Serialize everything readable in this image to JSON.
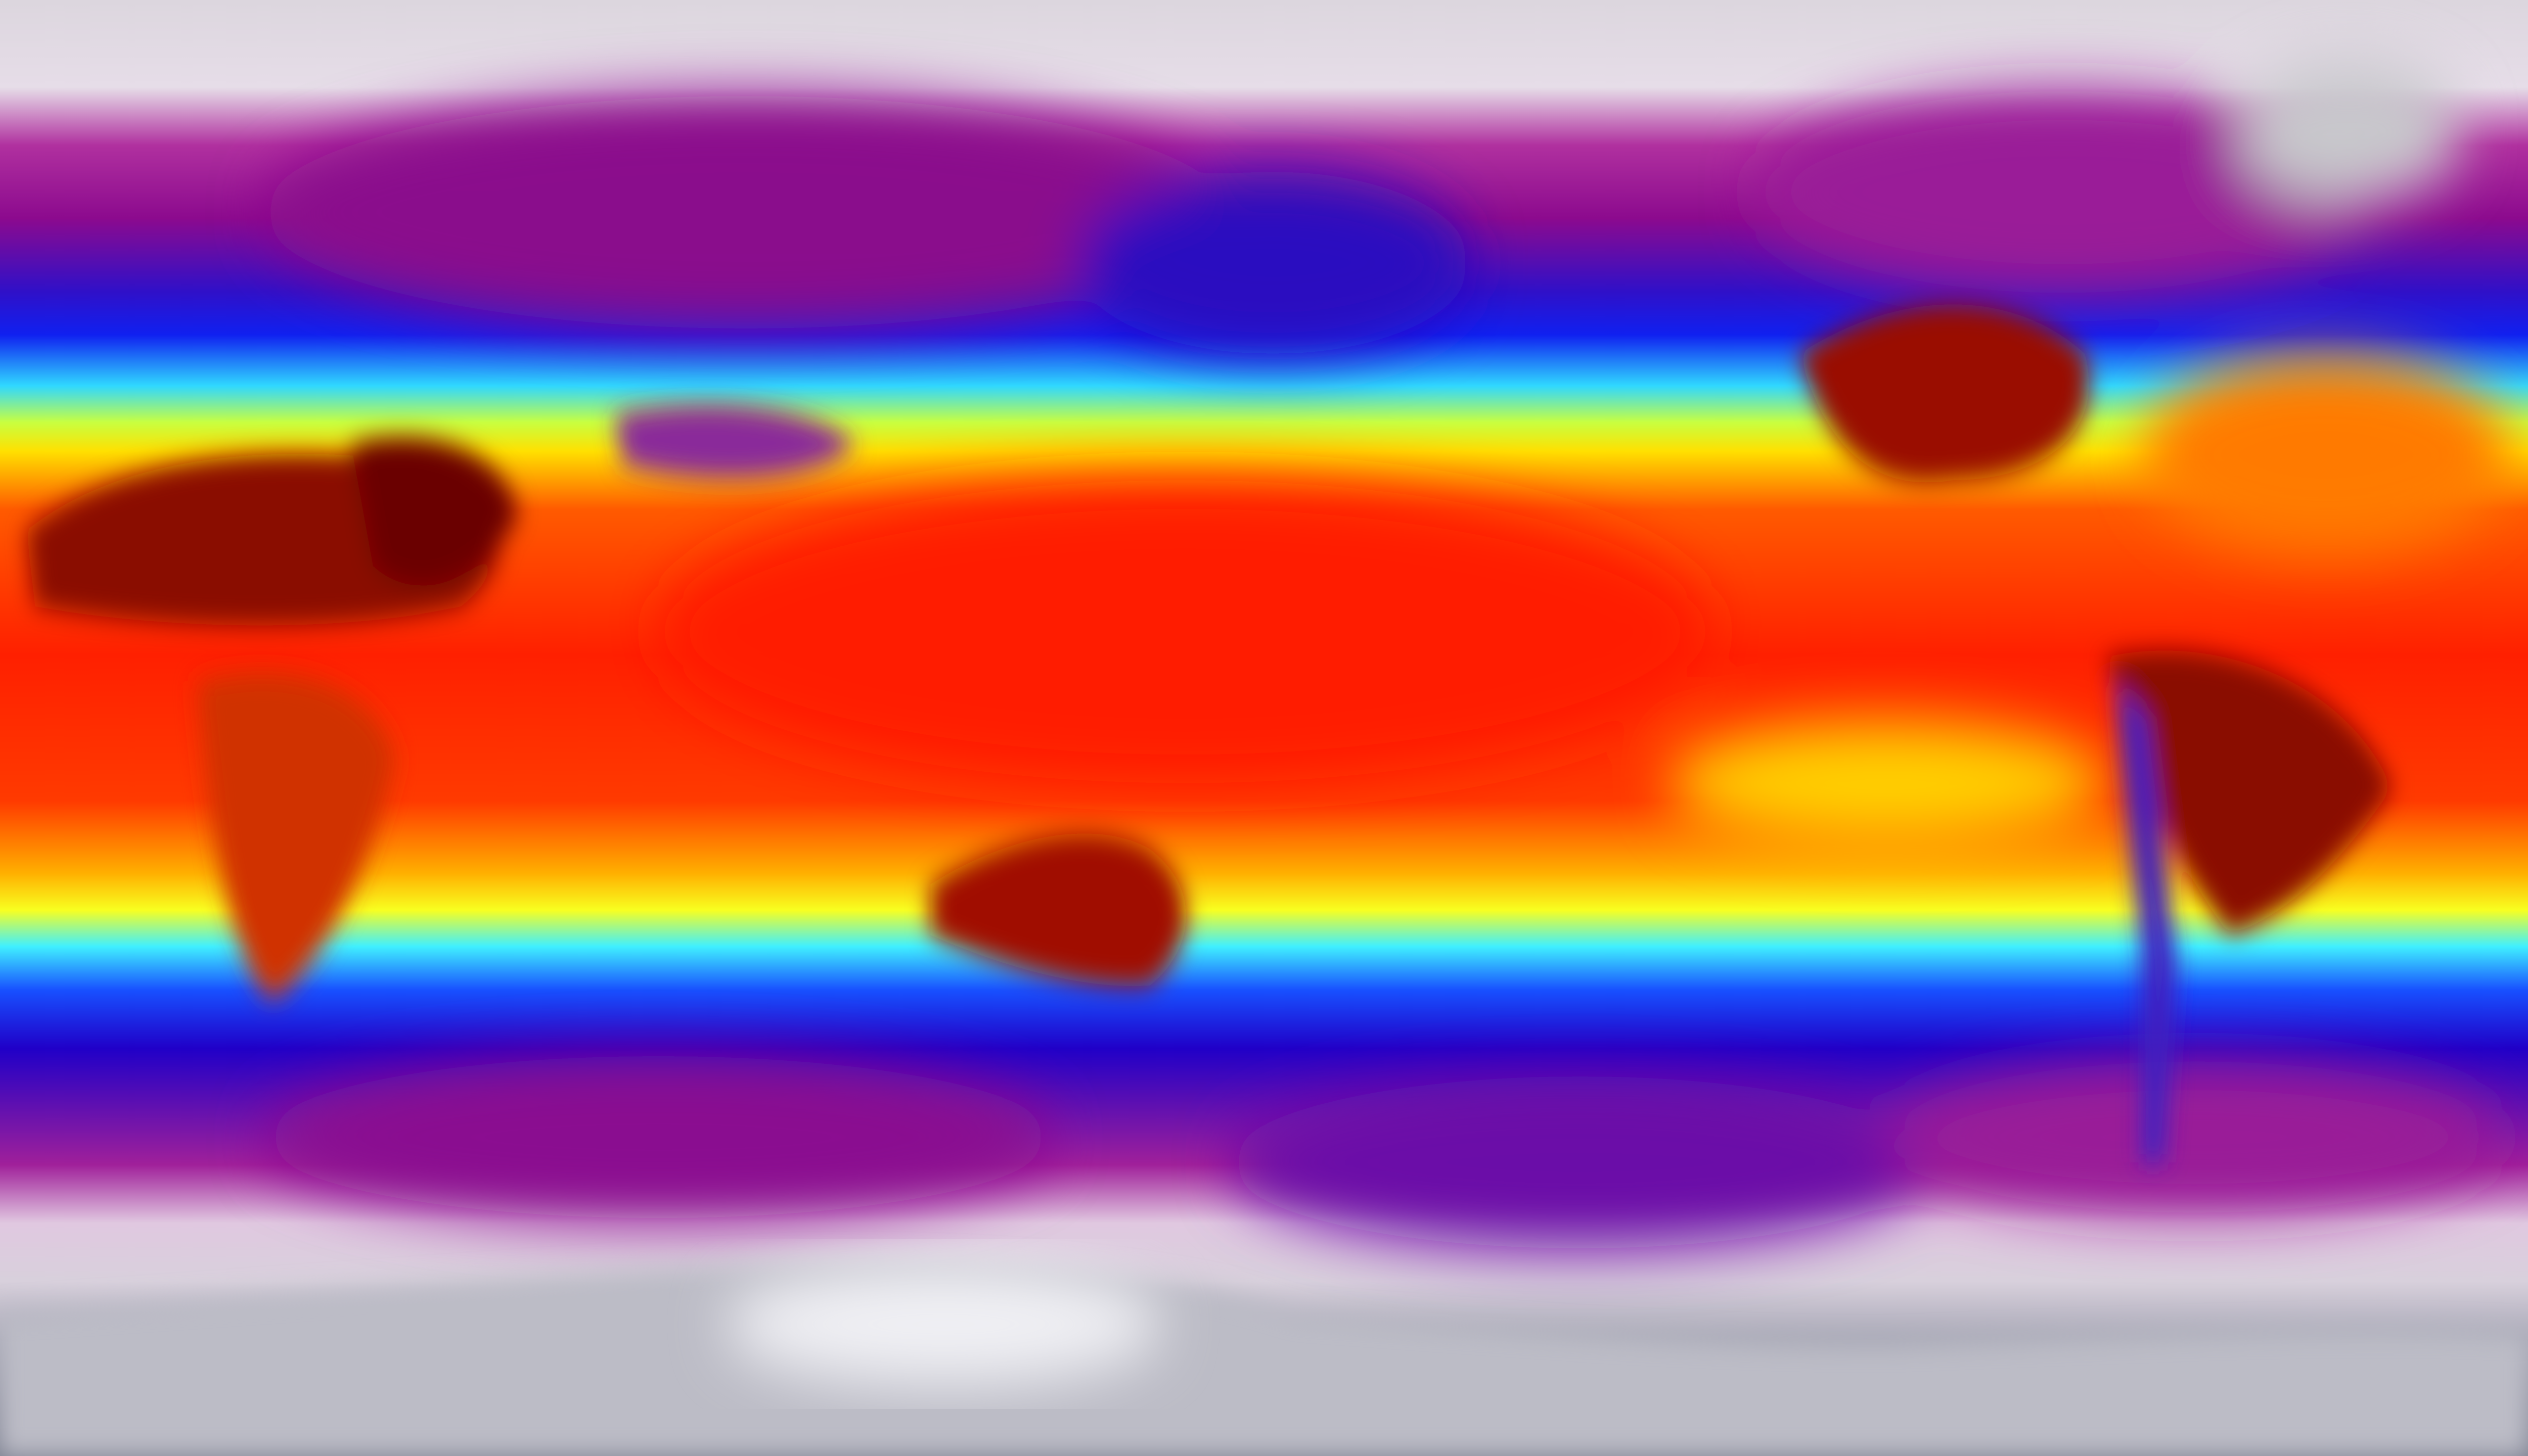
{
  "map": {
    "projection": "equirectangular",
    "colormap": {
      "ice": "#8a8d9c",
      "polar": "#e8dde8",
      "cold": "#9a0a9a",
      "cool": "#1a00e0",
      "mild": "#38e8ff",
      "warm": "#fff000",
      "hot": "#ff2a00",
      "hottest": "#5a0000"
    },
    "land_hotspot_color": "#7a0000",
    "antarctica_color": "#c8c8d0"
  }
}
